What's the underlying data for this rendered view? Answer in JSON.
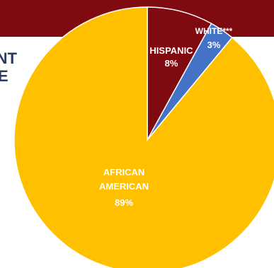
{
  "header": {
    "band_color": "#7f0a10",
    "side_text_lines": [
      "ENT",
      "E"
    ],
    "side_text_color": "#2f3b5c"
  },
  "chart_data": {
    "type": "pie",
    "title": "",
    "slices": [
      {
        "label": "HISPANIC",
        "value": 8,
        "value_label": "8%",
        "color": "#7f0a10"
      },
      {
        "label": "WHITE***",
        "value": 3,
        "value_label": "3%",
        "color": "#4472c4"
      },
      {
        "label": "AFRICAN AMERICAN",
        "label_lines": [
          "AFRICAN",
          "AMERICAN"
        ],
        "value": 89,
        "value_label": "89%",
        "color": "#ffc000"
      }
    ],
    "start_angle_deg": 0,
    "direction": "clockwise",
    "legend": "none"
  }
}
